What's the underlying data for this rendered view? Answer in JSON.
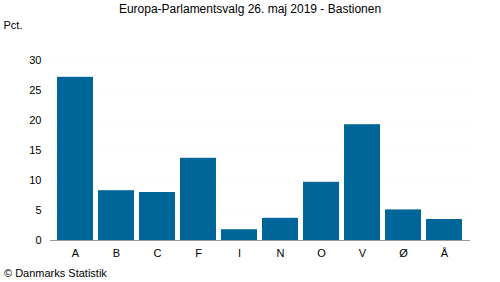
{
  "chart_data": {
    "type": "bar",
    "title": "Europa-Parlamentsvalg 26. maj 2019 - Bastionen",
    "y_label": "Pct.",
    "caption": "© Danmarks Statistik",
    "categories": [
      "A",
      "B",
      "C",
      "F",
      "I",
      "N",
      "O",
      "V",
      "Ø",
      "Å"
    ],
    "values": [
      27.2,
      8.3,
      8.0,
      13.7,
      1.8,
      3.7,
      9.7,
      19.3,
      5.1,
      3.5
    ],
    "color": "#006699",
    "ylim": [
      0,
      30
    ],
    "yticks": [
      0,
      5,
      10,
      15,
      20,
      25,
      30
    ],
    "grid": true
  }
}
